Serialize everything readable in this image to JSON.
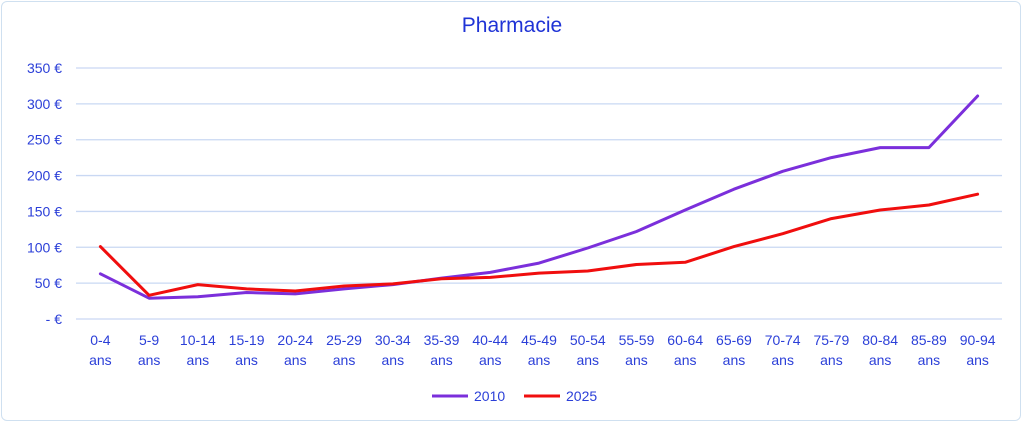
{
  "chart_data": {
    "type": "line",
    "title": "Pharmacie",
    "xlabel": "",
    "ylabel": "",
    "ylim": [
      0,
      350
    ],
    "y_ticks": [
      0,
      50,
      100,
      150,
      200,
      250,
      300,
      350
    ],
    "y_tick_labels": [
      "-  €",
      "50 €",
      "100 €",
      "150 €",
      "200 €",
      "250 €",
      "300 €",
      "350 €"
    ],
    "categories": [
      [
        "0-4",
        "ans"
      ],
      [
        "5-9",
        "ans"
      ],
      [
        "10-14",
        "ans"
      ],
      [
        "15-19",
        "ans"
      ],
      [
        "20-24",
        "ans"
      ],
      [
        "25-29",
        "ans"
      ],
      [
        "30-34",
        "ans"
      ],
      [
        "35-39",
        "ans"
      ],
      [
        "40-44",
        "ans"
      ],
      [
        "45-49",
        "ans"
      ],
      [
        "50-54",
        "ans"
      ],
      [
        "55-59",
        "ans"
      ],
      [
        "60-64",
        "ans"
      ],
      [
        "65-69",
        "ans"
      ],
      [
        "70-74",
        "ans"
      ],
      [
        "75-79",
        "ans"
      ],
      [
        "80-84",
        "ans"
      ],
      [
        "85-89",
        "ans"
      ],
      [
        "90-94",
        "ans"
      ]
    ],
    "series": [
      {
        "name": "2010",
        "color": "#7b2fdb",
        "values": [
          63,
          29,
          31,
          37,
          35,
          42,
          48,
          57,
          65,
          78,
          99,
          122,
          152,
          181,
          206,
          225,
          239,
          239,
          311
        ]
      },
      {
        "name": "2025",
        "color": "#f00e0e",
        "values": [
          101,
          33,
          48,
          42,
          39,
          46,
          49,
          56,
          58,
          64,
          67,
          76,
          79,
          101,
          119,
          140,
          152,
          159,
          174
        ]
      }
    ],
    "grid": true,
    "legend_position": "bottom"
  },
  "colors": {
    "title": "#1f33d6",
    "axis_text": "#2b3fd8",
    "gridline": "#c9d8f3"
  }
}
